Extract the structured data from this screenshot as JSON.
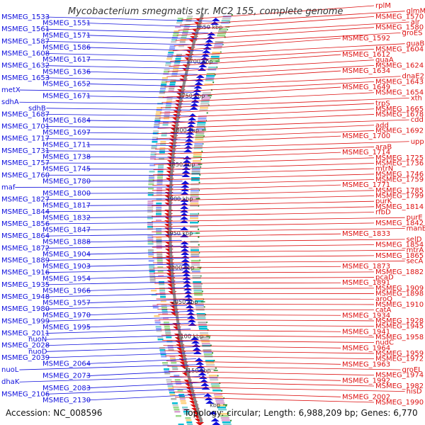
{
  "title": "Mycobacterium smegmatis str. MC2 155, complete genome",
  "footer": {
    "accession": "Accession: NC_008596",
    "info": "Topology: circular; Length: 6,988,209 bp; Genes: 6,770"
  },
  "colors": {
    "forward": "#1010dd",
    "reverse": "#dd1010",
    "backbone": "#888888",
    "tick": "#2a8a2a",
    "cds_track_a": "#00bcd4",
    "cds_track_b": "#a0a0a0"
  },
  "kbp_marks": [
    "1650 kbp",
    "1700 kbp",
    "1750 kbp",
    "1800 kbp",
    "1850 kbp",
    "1900 kbp",
    "1950 kbp",
    "2000 kbp",
    "2050 kbp",
    "2100 kbp",
    "2150 kbp",
    "kbp"
  ],
  "left_labels": [
    "MSMEG_1533",
    "MSMEG_1551",
    "MSMEG_1561",
    "MSMEG_1571",
    "MSMEG_1587",
    "MSMEG_1586",
    "MSMEG_1608",
    "MSMEG_1617",
    "MSMEG_1632",
    "MSMEG_1636",
    "MSMEG_1653",
    "MSMEG_1652",
    "metX",
    "MSMEG_1671",
    "sdhA",
    "sdhB",
    "MSMEG_1687",
    "MSMEG_1684",
    "MSMEG_1701",
    "MSMEG_1697",
    "MSMEG_1717",
    "MSMEG_1711",
    "MSMEG_1731",
    "MSMEG_1738",
    "MSMEG_1757",
    "MSMEG_1745",
    "MSMEG_1760",
    "MSMEG_1780",
    "maf",
    "MSMEG_1800",
    "MSMEG_1827",
    "MSMEG_1817",
    "MSMEG_1844",
    "MSMEG_1832",
    "MSMEG_1856",
    "MSMEG_1847",
    "MSMEG_1864",
    "MSMEG_1888",
    "MSMEG_1872",
    "MSMEG_1904",
    "MSMEG_1889",
    "MSMEG_1903",
    "MSMEG_1916",
    "MSMEG_1954",
    "MSMEG_1935",
    "MSMEG_1966",
    "MSMEG_1948",
    "MSMEG_1957",
    "MSMEG_1980",
    "MSMEG_1970",
    "MSMEG_1999",
    "MSMEG_1995",
    "MSMEG_2011",
    "nuoN",
    "MSMEG_2028",
    "nuoD",
    "MSMEG_2039",
    "MSMEG_2064",
    "nuoL",
    "MSMEG_2073",
    "dhaK",
    "MSMEG_2083",
    "MSMEG_2106",
    "MSMEG_2130"
  ],
  "right_labels": [
    "rplM",
    "glmM",
    "MSMEG_1570",
    "alr",
    "MSMEG_1580",
    "groES",
    "MSMEG_1592",
    "guaB",
    "MSMEG_1604",
    "MSMEG_1612",
    "guaA",
    "MSMEG_1624",
    "MSMEG_1634",
    "dnaE2",
    "MSMEG_1643",
    "MSMEG_1649",
    "MSMEG_1654",
    "xth",
    "trpS",
    "MSMEG_1665",
    "MSMEG_1678",
    "cdd",
    "add",
    "MSMEG_1692",
    "MSMEG_1700",
    "upp",
    "araB",
    "MSMEG_1714",
    "MSMEG_1725",
    "MSMEG_1736",
    "mtrN",
    "MSMEG_1746",
    "MSMEG_1759",
    "MSMEG_1771",
    "MSMEG_1785",
    "MSMEG_1799",
    "purK",
    "MSMEG_1814",
    "rfbD",
    "purE",
    "MSMEG_1842",
    "manB",
    "MSMEG_1833",
    "selD",
    "MSMEG_1854",
    "mtrA",
    "MSMEG_1865",
    "secA",
    "MSMEG_1873",
    "MSMEG_1882",
    "pcaD",
    "MSMEG_1891",
    "MSMEG_1909",
    "MSMEG_1898",
    "aroQ",
    "MSMEG_1910",
    "catA",
    "MSMEG_1934",
    "MSMEG_1928",
    "MSMEG_1945",
    "MSMEG_1941",
    "MSMEG_1958",
    "nudC",
    "MSMEG_1964",
    "MSMEG_1959",
    "MSMEG_1972",
    "MSMEG_1963",
    "groEL",
    "MSMEG_1974",
    "MSMEG_1992",
    "MSMEG_1982",
    "hisD",
    "MSMEG_2002",
    "MSMEG_1990"
  ]
}
